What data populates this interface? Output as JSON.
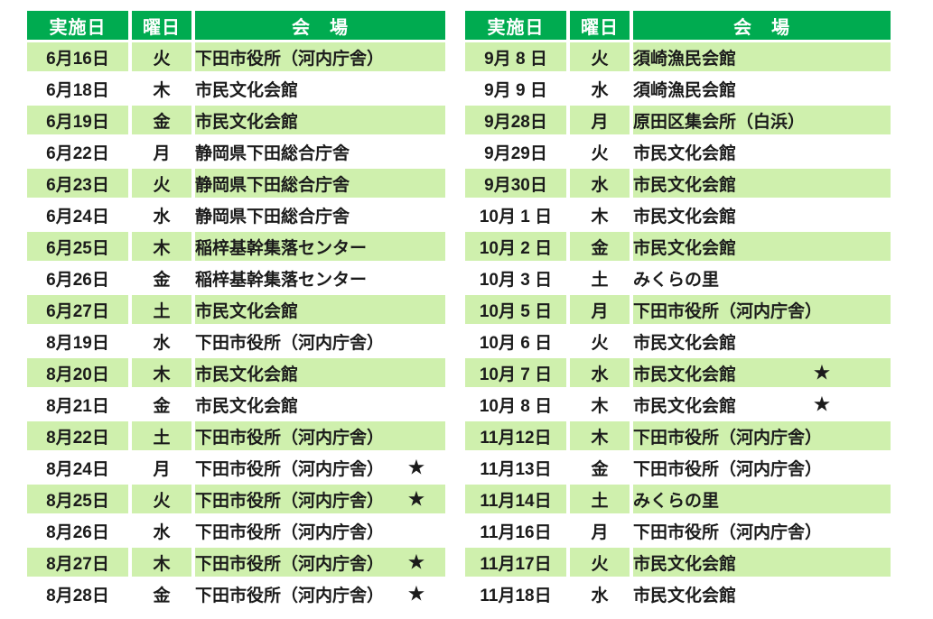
{
  "colors": {
    "header_bg": "#00ab50",
    "header_text": "#ffffff",
    "row_alt_bg": "#cff0ad",
    "row_bg": "#ffffff",
    "body_text": "#1b1b1b"
  },
  "star_icon": "★",
  "tables": [
    {
      "id": "left",
      "headers": {
        "date": "実施日",
        "day": "曜日",
        "venue": "会　場"
      },
      "rows": [
        {
          "date": "6月16日",
          "day": "火",
          "venue": "下田市役所（河内庁舎）",
          "star": false
        },
        {
          "date": "6月18日",
          "day": "木",
          "venue": "市民文化会館",
          "star": false
        },
        {
          "date": "6月19日",
          "day": "金",
          "venue": "市民文化会館",
          "star": false
        },
        {
          "date": "6月22日",
          "day": "月",
          "venue": "静岡県下田総合庁舎",
          "star": false
        },
        {
          "date": "6月23日",
          "day": "火",
          "venue": "静岡県下田総合庁舎",
          "star": false
        },
        {
          "date": "6月24日",
          "day": "水",
          "venue": "静岡県下田総合庁舎",
          "star": false
        },
        {
          "date": "6月25日",
          "day": "木",
          "venue": "稲梓基幹集落センター",
          "star": false
        },
        {
          "date": "6月26日",
          "day": "金",
          "venue": "稲梓基幹集落センター",
          "star": false
        },
        {
          "date": "6月27日",
          "day": "土",
          "venue": "市民文化会館",
          "star": false
        },
        {
          "date": "8月19日",
          "day": "水",
          "venue": "下田市役所（河内庁舎）",
          "star": false
        },
        {
          "date": "8月20日",
          "day": "木",
          "venue": "市民文化会館",
          "star": false
        },
        {
          "date": "8月21日",
          "day": "金",
          "venue": "市民文化会館",
          "star": false
        },
        {
          "date": "8月22日",
          "day": "土",
          "venue": "下田市役所（河内庁舎）",
          "star": false
        },
        {
          "date": "8月24日",
          "day": "月",
          "venue": "下田市役所（河内庁舎）",
          "star": true
        },
        {
          "date": "8月25日",
          "day": "火",
          "venue": "下田市役所（河内庁舎）",
          "star": true
        },
        {
          "date": "8月26日",
          "day": "水",
          "venue": "下田市役所（河内庁舎）",
          "star": false
        },
        {
          "date": "8月27日",
          "day": "木",
          "venue": "下田市役所（河内庁舎）",
          "star": true
        },
        {
          "date": "8月28日",
          "day": "金",
          "venue": "下田市役所（河内庁舎）",
          "star": true
        }
      ]
    },
    {
      "id": "right",
      "headers": {
        "date": "実施日",
        "day": "曜日",
        "venue": "会　場"
      },
      "rows": [
        {
          "date": "9月 8 日",
          "day": "火",
          "venue": "須崎漁民会館",
          "star": false
        },
        {
          "date": "9月 9 日",
          "day": "水",
          "venue": "須崎漁民会館",
          "star": false
        },
        {
          "date": "9月28日",
          "day": "月",
          "venue": "原田区集会所（白浜）",
          "star": false
        },
        {
          "date": "9月29日",
          "day": "火",
          "venue": "市民文化会館",
          "star": false
        },
        {
          "date": "9月30日",
          "day": "水",
          "venue": "市民文化会館",
          "star": false
        },
        {
          "date": "10月 1 日",
          "day": "木",
          "venue": "市民文化会館",
          "star": false
        },
        {
          "date": "10月 2 日",
          "day": "金",
          "venue": "市民文化会館",
          "star": false
        },
        {
          "date": "10月 3 日",
          "day": "土",
          "venue": "みくらの里",
          "star": false
        },
        {
          "date": "10月 5 日",
          "day": "月",
          "venue": "下田市役所（河内庁舎）",
          "star": false
        },
        {
          "date": "10月 6 日",
          "day": "火",
          "venue": "市民文化会館",
          "star": false
        },
        {
          "date": "10月 7 日",
          "day": "水",
          "venue": "市民文化会館",
          "star": true
        },
        {
          "date": "10月 8 日",
          "day": "木",
          "venue": "市民文化会館",
          "star": true
        },
        {
          "date": "11月12日",
          "day": "木",
          "venue": "下田市役所（河内庁舎）",
          "star": false
        },
        {
          "date": "11月13日",
          "day": "金",
          "venue": "下田市役所（河内庁舎）",
          "star": false
        },
        {
          "date": "11月14日",
          "day": "土",
          "venue": "みくらの里",
          "star": false
        },
        {
          "date": "11月16日",
          "day": "月",
          "venue": "下田市役所（河内庁舎）",
          "star": false
        },
        {
          "date": "11月17日",
          "day": "火",
          "venue": "市民文化会館",
          "star": false
        },
        {
          "date": "11月18日",
          "day": "水",
          "venue": "市民文化会館",
          "star": false
        }
      ]
    }
  ]
}
